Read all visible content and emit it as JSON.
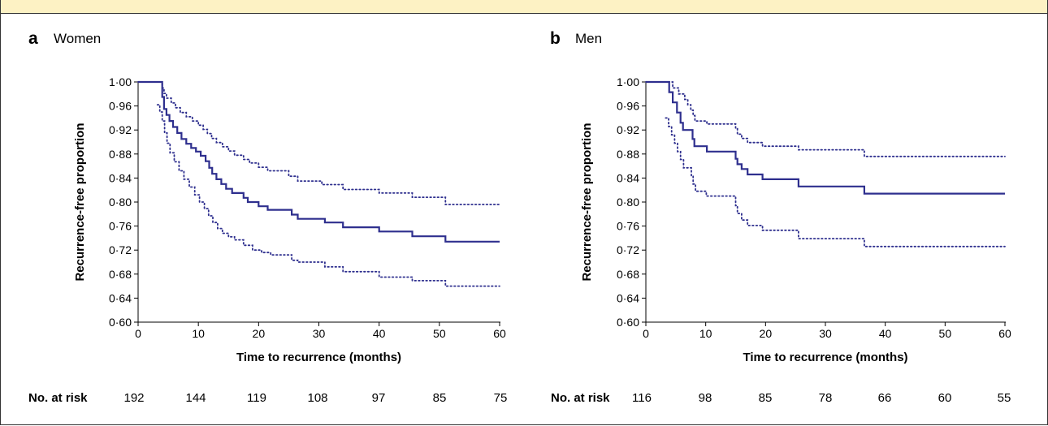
{
  "chart_data": [
    {
      "type": "line",
      "panel": "a",
      "title": "Women",
      "xlabel": "Time to recurrence (months)",
      "ylabel": "Recurrence-free proportion",
      "xlim": [
        0,
        60
      ],
      "ylim": [
        0.6,
        1.0
      ],
      "xticks": [
        "0",
        "10",
        "20",
        "30",
        "40",
        "50",
        "60"
      ],
      "yticks": [
        "0·60",
        "0·64",
        "0·68",
        "0·72",
        "0·76",
        "0·80",
        "0·84",
        "0·88",
        "0·92",
        "0·96",
        "1·00"
      ],
      "risk_label": "No. at risk",
      "risk_values": [
        "192",
        "144",
        "119",
        "108",
        "97",
        "85",
        "75"
      ],
      "series": [
        {
          "role": "estimate",
          "style": "solid",
          "color": "#2e2f8e",
          "steps": [
            [
              0,
              1.0
            ],
            [
              3.8,
              1.0
            ],
            [
              4,
              0.975
            ],
            [
              4.3,
              0.955
            ],
            [
              4.7,
              0.945
            ],
            [
              5.2,
              0.935
            ],
            [
              5.8,
              0.925
            ],
            [
              6.5,
              0.915
            ],
            [
              7.2,
              0.905
            ],
            [
              8,
              0.897
            ],
            [
              8.8,
              0.89
            ],
            [
              9.6,
              0.884
            ],
            [
              10.4,
              0.877
            ],
            [
              11.2,
              0.868
            ],
            [
              11.8,
              0.857
            ],
            [
              12.3,
              0.847
            ],
            [
              13,
              0.838
            ],
            [
              13.8,
              0.83
            ],
            [
              14.6,
              0.822
            ],
            [
              15.6,
              0.815
            ],
            [
              17.5,
              0.807
            ],
            [
              18.2,
              0.8
            ],
            [
              20,
              0.793
            ],
            [
              21.5,
              0.787
            ],
            [
              25.5,
              0.779
            ],
            [
              26.5,
              0.772
            ],
            [
              31,
              0.766
            ],
            [
              34,
              0.758
            ],
            [
              40,
              0.751
            ],
            [
              45.5,
              0.743
            ],
            [
              51,
              0.734
            ],
            [
              60,
              0.734
            ]
          ]
        },
        {
          "role": "upper-ci",
          "style": "dotted",
          "color": "#2e2f8e",
          "steps": [
            [
              0,
              1.0
            ],
            [
              3.8,
              1.0
            ],
            [
              4,
              0.99
            ],
            [
              4.3,
              0.981
            ],
            [
              4.7,
              0.973
            ],
            [
              5.5,
              0.965
            ],
            [
              6.2,
              0.957
            ],
            [
              7,
              0.949
            ],
            [
              8,
              0.942
            ],
            [
              9,
              0.935
            ],
            [
              10,
              0.928
            ],
            [
              10.8,
              0.921
            ],
            [
              11.5,
              0.914
            ],
            [
              12.2,
              0.906
            ],
            [
              13,
              0.899
            ],
            [
              14,
              0.892
            ],
            [
              15,
              0.885
            ],
            [
              16,
              0.878
            ],
            [
              17.5,
              0.871
            ],
            [
              18.5,
              0.865
            ],
            [
              20,
              0.858
            ],
            [
              21.5,
              0.852
            ],
            [
              25,
              0.843
            ],
            [
              26.5,
              0.835
            ],
            [
              30.5,
              0.829
            ],
            [
              34,
              0.821
            ],
            [
              40,
              0.815
            ],
            [
              45.5,
              0.808
            ],
            [
              51,
              0.796
            ],
            [
              60,
              0.796
            ]
          ]
        },
        {
          "role": "lower-ci",
          "style": "dotted",
          "color": "#2e2f8e",
          "steps": [
            [
              3.2,
              0.962
            ],
            [
              3.6,
              0.95
            ],
            [
              4,
              0.935
            ],
            [
              4.4,
              0.915
            ],
            [
              4.8,
              0.898
            ],
            [
              5.3,
              0.882
            ],
            [
              6,
              0.867
            ],
            [
              6.8,
              0.852
            ],
            [
              7.6,
              0.838
            ],
            [
              8.5,
              0.825
            ],
            [
              9.4,
              0.812
            ],
            [
              10.2,
              0.8
            ],
            [
              11,
              0.789
            ],
            [
              11.7,
              0.777
            ],
            [
              12.4,
              0.766
            ],
            [
              13.2,
              0.756
            ],
            [
              14,
              0.748
            ],
            [
              15,
              0.742
            ],
            [
              16,
              0.737
            ],
            [
              17.5,
              0.728
            ],
            [
              19,
              0.72
            ],
            [
              20.5,
              0.716
            ],
            [
              22,
              0.712
            ],
            [
              25.5,
              0.703
            ],
            [
              26.5,
              0.7
            ],
            [
              31,
              0.692
            ],
            [
              34,
              0.684
            ],
            [
              40,
              0.675
            ],
            [
              45.5,
              0.669
            ],
            [
              51,
              0.66
            ],
            [
              60,
              0.66
            ]
          ]
        }
      ]
    },
    {
      "type": "line",
      "panel": "b",
      "title": "Men",
      "xlabel": "Time to recurrence (months)",
      "ylabel": "Recurrence-free proportion",
      "xlim": [
        0,
        60
      ],
      "ylim": [
        0.6,
        1.0
      ],
      "xticks": [
        "0",
        "10",
        "20",
        "30",
        "40",
        "50",
        "60"
      ],
      "yticks": [
        "0·60",
        "0·64",
        "0·68",
        "0·72",
        "0·76",
        "0·80",
        "0·84",
        "0·88",
        "0·92",
        "0·96",
        "1·00"
      ],
      "risk_label": "No. at risk",
      "risk_values": [
        "116",
        "98",
        "85",
        "78",
        "66",
        "60",
        "55"
      ],
      "series": [
        {
          "role": "estimate",
          "style": "solid",
          "color": "#2e2f8e",
          "steps": [
            [
              0,
              1.0
            ],
            [
              3.5,
              1.0
            ],
            [
              3.9,
              0.983
            ],
            [
              4.5,
              0.966
            ],
            [
              5.2,
              0.949
            ],
            [
              5.8,
              0.932
            ],
            [
              6.2,
              0.92
            ],
            [
              7.8,
              0.905
            ],
            [
              8.1,
              0.893
            ],
            [
              10.2,
              0.884
            ],
            [
              15,
              0.872
            ],
            [
              15.3,
              0.863
            ],
            [
              16,
              0.855
            ],
            [
              17,
              0.846
            ],
            [
              19.5,
              0.838
            ],
            [
              25.5,
              0.826
            ],
            [
              36.5,
              0.814
            ],
            [
              60,
              0.814
            ]
          ]
        },
        {
          "role": "upper-ci",
          "style": "dotted",
          "color": "#2e2f8e",
          "steps": [
            [
              0,
              1.0
            ],
            [
              3.7,
              1.0
            ],
            [
              4.5,
              0.99
            ],
            [
              5.5,
              0.98
            ],
            [
              6.5,
              0.971
            ],
            [
              7,
              0.962
            ],
            [
              7.5,
              0.953
            ],
            [
              7.9,
              0.944
            ],
            [
              8.2,
              0.935
            ],
            [
              10.2,
              0.93
            ],
            [
              15,
              0.922
            ],
            [
              15.3,
              0.913
            ],
            [
              16,
              0.906
            ],
            [
              17,
              0.899
            ],
            [
              19.5,
              0.893
            ],
            [
              25.5,
              0.887
            ],
            [
              36.5,
              0.876
            ],
            [
              60,
              0.876
            ]
          ]
        },
        {
          "role": "lower-ci",
          "style": "dotted",
          "color": "#2e2f8e",
          "steps": [
            [
              3.3,
              0.94
            ],
            [
              3.8,
              0.926
            ],
            [
              4.3,
              0.912
            ],
            [
              4.8,
              0.898
            ],
            [
              5.3,
              0.884
            ],
            [
              5.8,
              0.871
            ],
            [
              6.3,
              0.857
            ],
            [
              7.6,
              0.843
            ],
            [
              7.9,
              0.83
            ],
            [
              8.3,
              0.818
            ],
            [
              10.1,
              0.81
            ],
            [
              15,
              0.794
            ],
            [
              15.3,
              0.781
            ],
            [
              16,
              0.77
            ],
            [
              17,
              0.761
            ],
            [
              19.5,
              0.753
            ],
            [
              25.5,
              0.739
            ],
            [
              36.5,
              0.726
            ],
            [
              60,
              0.726
            ]
          ]
        }
      ]
    }
  ]
}
